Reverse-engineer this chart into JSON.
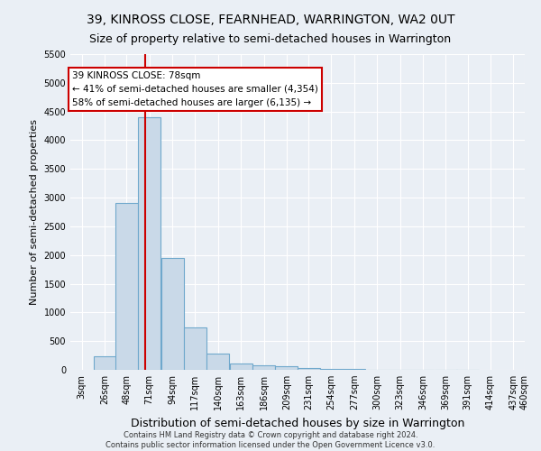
{
  "title": "39, KINROSS CLOSE, FEARNHEAD, WARRINGTON, WA2 0UT",
  "subtitle": "Size of property relative to semi-detached houses in Warrington",
  "xlabel": "Distribution of semi-detached houses by size in Warrington",
  "ylabel": "Number of semi-detached properties",
  "footer_line1": "Contains HM Land Registry data © Crown copyright and database right 2024.",
  "footer_line2": "Contains public sector information licensed under the Open Government Licence v3.0.",
  "bin_edges": [
    3,
    26,
    48,
    71,
    94,
    117,
    140,
    163,
    186,
    209,
    231,
    254,
    277,
    300,
    323,
    346,
    369,
    391,
    414,
    437,
    460
  ],
  "bar_heights": [
    0,
    230,
    2900,
    4400,
    1950,
    740,
    290,
    110,
    80,
    60,
    30,
    15,
    10,
    5,
    3,
    2,
    1,
    1,
    0,
    0
  ],
  "bar_color": "#c9d9e8",
  "bar_edgecolor": "#6fa8cc",
  "property_size": 78,
  "red_line_color": "#cc0000",
  "annotation_line1": "39 KINROSS CLOSE: 78sqm",
  "annotation_line2": "← 41% of semi-detached houses are smaller (4,354)",
  "annotation_line3": "58% of semi-detached houses are larger (6,135) →",
  "annotation_box_color": "white",
  "annotation_box_edgecolor": "#cc0000",
  "ylim": [
    0,
    5500
  ],
  "yticks": [
    0,
    500,
    1000,
    1500,
    2000,
    2500,
    3000,
    3500,
    4000,
    4500,
    5000,
    5500
  ],
  "background_color": "#eaeff5",
  "grid_color": "white",
  "title_fontsize": 10,
  "subtitle_fontsize": 9,
  "ylabel_fontsize": 8,
  "xlabel_fontsize": 9,
  "tick_fontsize": 7,
  "annotation_fontsize": 7.5,
  "footer_fontsize": 6
}
